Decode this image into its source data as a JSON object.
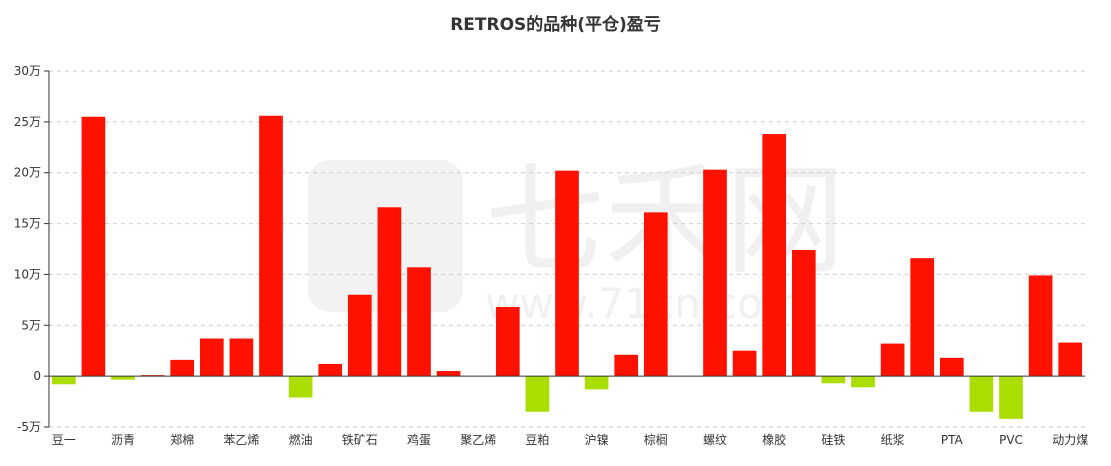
{
  "chart_data": {
    "type": "bar",
    "title": "RETROS的品种(平仓)盈亏",
    "xlabel": "",
    "ylabel": "",
    "ylim": [
      -50000,
      300000
    ],
    "y_ticks": [
      {
        "value": 300000,
        "label": "30万"
      },
      {
        "value": 250000,
        "label": "25万"
      },
      {
        "value": 200000,
        "label": "20万"
      },
      {
        "value": 150000,
        "label": "15万"
      },
      {
        "value": 100000,
        "label": "10万"
      },
      {
        "value": 50000,
        "label": "5万"
      },
      {
        "value": 0,
        "label": "0"
      },
      {
        "value": -50000,
        "label": "-5万"
      }
    ],
    "grid": true,
    "positive_color": "#ff1100",
    "negative_color": "#aadd00",
    "x_tick_labels": [
      "豆一",
      "沥青",
      "郑棉",
      "苯乙烯",
      "燃油",
      "铁矿石",
      "鸡蛋",
      "聚乙烯",
      "豆粕",
      "沪镍",
      "棕榈",
      "螺纹",
      "橡胶",
      "硅铁",
      "纸浆",
      "PTA",
      "PVC",
      "动力煤"
    ],
    "values": [
      -8000,
      255000,
      -3500,
      1000,
      16000,
      37000,
      37000,
      256000,
      -21000,
      12000,
      80000,
      166000,
      107000,
      5000,
      0,
      68000,
      -35000,
      202000,
      -13000,
      21000,
      161000,
      0,
      203000,
      25000,
      238000,
      124000,
      -7000,
      -11000,
      32000,
      116000,
      18000,
      -35000,
      -42000,
      99000,
      33000
    ]
  },
  "watermark": {
    "brand": "七禾网",
    "url": "www.71cn.com"
  }
}
